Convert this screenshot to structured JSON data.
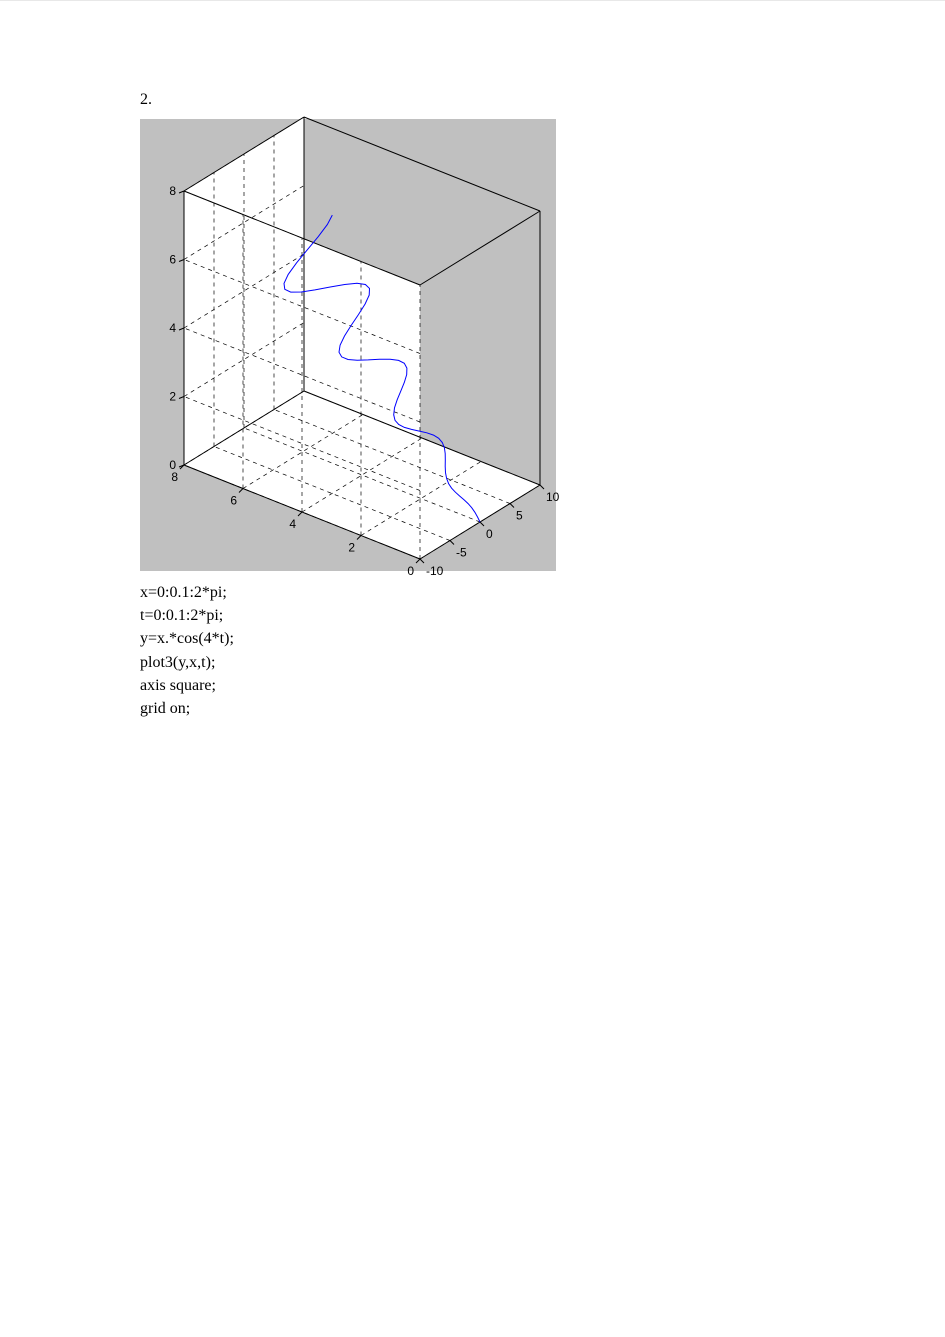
{
  "section_number": "2.",
  "chart": {
    "type": "3d-line",
    "background_color": "#c0c0c0",
    "plot_area_color": "#ffffff",
    "grid_color": "#000000",
    "grid_dash": "4 4",
    "axis_color": "#000000",
    "line_color": "#0000ff",
    "line_width": 1,
    "tick_font_size": 12,
    "tick_color": "#000000",
    "z_axis": {
      "min": 0,
      "max": 8,
      "ticks": [
        0,
        2,
        4,
        6,
        8
      ]
    },
    "x_axis": {
      "min": 0,
      "max": 8,
      "ticks": [
        0,
        2,
        4,
        6,
        8
      ]
    },
    "y_axis": {
      "min": -10,
      "max": 10,
      "ticks": [
        -10,
        -5,
        0,
        5,
        10
      ]
    },
    "curve_t_range": {
      "start": 0,
      "end": 6.2832,
      "step": 0.1
    },
    "curve_formula": {
      "y": "x * cos(4*t)",
      "plot_axes_order": "plot3(y, x, t)"
    }
  },
  "code": {
    "lines": [
      "x=0:0.1:2*pi;",
      "t=0:0.1:2*pi;",
      "y=x.*cos(4*t);",
      "plot3(y,x,t);",
      "axis  square;",
      "grid  on;"
    ]
  }
}
